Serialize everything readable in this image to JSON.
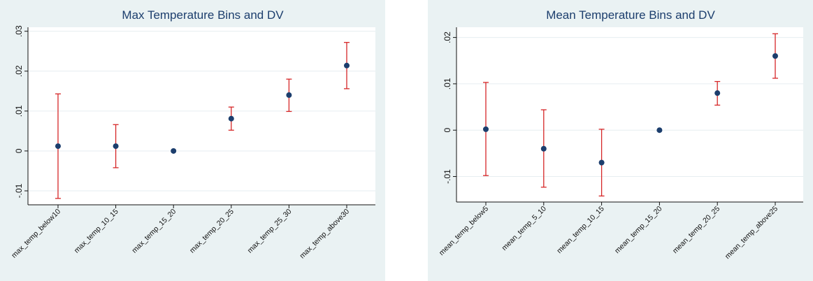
{
  "chart_data": [
    {
      "type": "scatter",
      "title": "Max Temperature Bins and DV",
      "xlabel": "",
      "ylabel": "",
      "ylim": [
        -0.0135,
        0.031
      ],
      "yticks": [
        "-.01",
        "0",
        ".01",
        ".02",
        ".03"
      ],
      "ytick_values": [
        -0.01,
        0,
        0.01,
        0.02,
        0.03
      ],
      "grid": true,
      "categories": [
        "max_temp_below10",
        "max_temp_10_15",
        "max_temp_15_20",
        "max_temp_20_25",
        "max_temp_25_30",
        "max_temp_above30"
      ],
      "values": [
        0.0012,
        0.0012,
        0.0,
        0.0081,
        0.014,
        0.0214
      ],
      "ci_low": [
        -0.0119,
        -0.0042,
        null,
        0.0052,
        0.0099,
        0.0156
      ],
      "ci_high": [
        0.0143,
        0.0066,
        null,
        0.011,
        0.018,
        0.0272
      ],
      "point_color": "#1c3e6d",
      "ci_color": "#d62728",
      "plot_bg": "#ffffff",
      "outer_bg": "#eaf2f3"
    },
    {
      "type": "scatter",
      "title": "Mean Temperature Bins and DV",
      "xlabel": "",
      "ylabel": "",
      "ylim": [
        -0.0155,
        0.0222
      ],
      "yticks": [
        "-.01",
        "0",
        ".01",
        ".02"
      ],
      "ytick_values": [
        -0.01,
        0,
        0.01,
        0.02
      ],
      "grid": true,
      "categories": [
        "mean_temp_below5",
        "mean_temp_5_10",
        "mean_temp_10_15",
        "mean_temp_15_20",
        "mean_temp_20_25",
        "mean_temp_above25"
      ],
      "values": [
        0.0002,
        -0.004,
        -0.007,
        0.0,
        0.008,
        0.016
      ],
      "ci_low": [
        -0.0098,
        -0.0123,
        -0.0142,
        null,
        0.0054,
        0.0112
      ],
      "ci_high": [
        0.0103,
        0.0044,
        0.0002,
        null,
        0.0105,
        0.0208
      ],
      "point_color": "#1c3e6d",
      "ci_color": "#d62728",
      "plot_bg": "#ffffff",
      "outer_bg": "#eaf2f3"
    }
  ]
}
